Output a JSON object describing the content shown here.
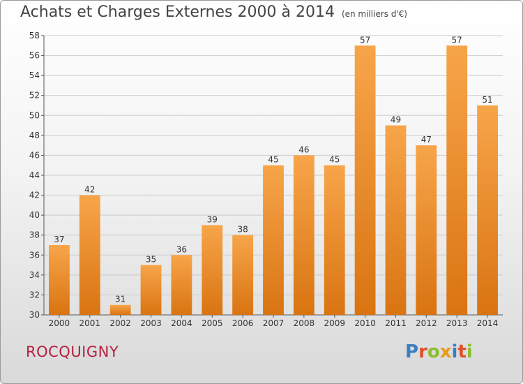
{
  "header": {
    "title": "Achats et Charges Externes 2000 à 2014",
    "unit": "(en milliers d'€)"
  },
  "commune": "ROCQUIGNY",
  "logo": {
    "text": "Proxiti",
    "letter_colors": [
      "#3a7fc1",
      "#e0502a",
      "#8dbd2c",
      "#e89a1a",
      "#3a7fc1",
      "#e0502a",
      "#8dbd2c"
    ]
  },
  "colors": {
    "bar_light": "#f7a54a",
    "bar_dark": "#d97411",
    "grid": "#cccccc"
  },
  "chart_data": {
    "type": "bar",
    "title": "Achats et Charges Externes 2000 à 2014",
    "subtitle": "(en milliers d'€)",
    "categories": [
      "2000",
      "2001",
      "2002",
      "2003",
      "2004",
      "2005",
      "2006",
      "2007",
      "2008",
      "2009",
      "2010",
      "2011",
      "2012",
      "2013",
      "2014"
    ],
    "values": [
      37,
      42,
      31,
      35,
      36,
      39,
      38,
      45,
      46,
      45,
      57,
      49,
      47,
      57,
      51
    ],
    "ylim": [
      30,
      58
    ],
    "yticks": [
      30,
      32,
      34,
      36,
      38,
      40,
      42,
      44,
      46,
      48,
      50,
      52,
      54,
      56,
      58
    ],
    "grid": true,
    "xlabel": "",
    "ylabel": ""
  }
}
